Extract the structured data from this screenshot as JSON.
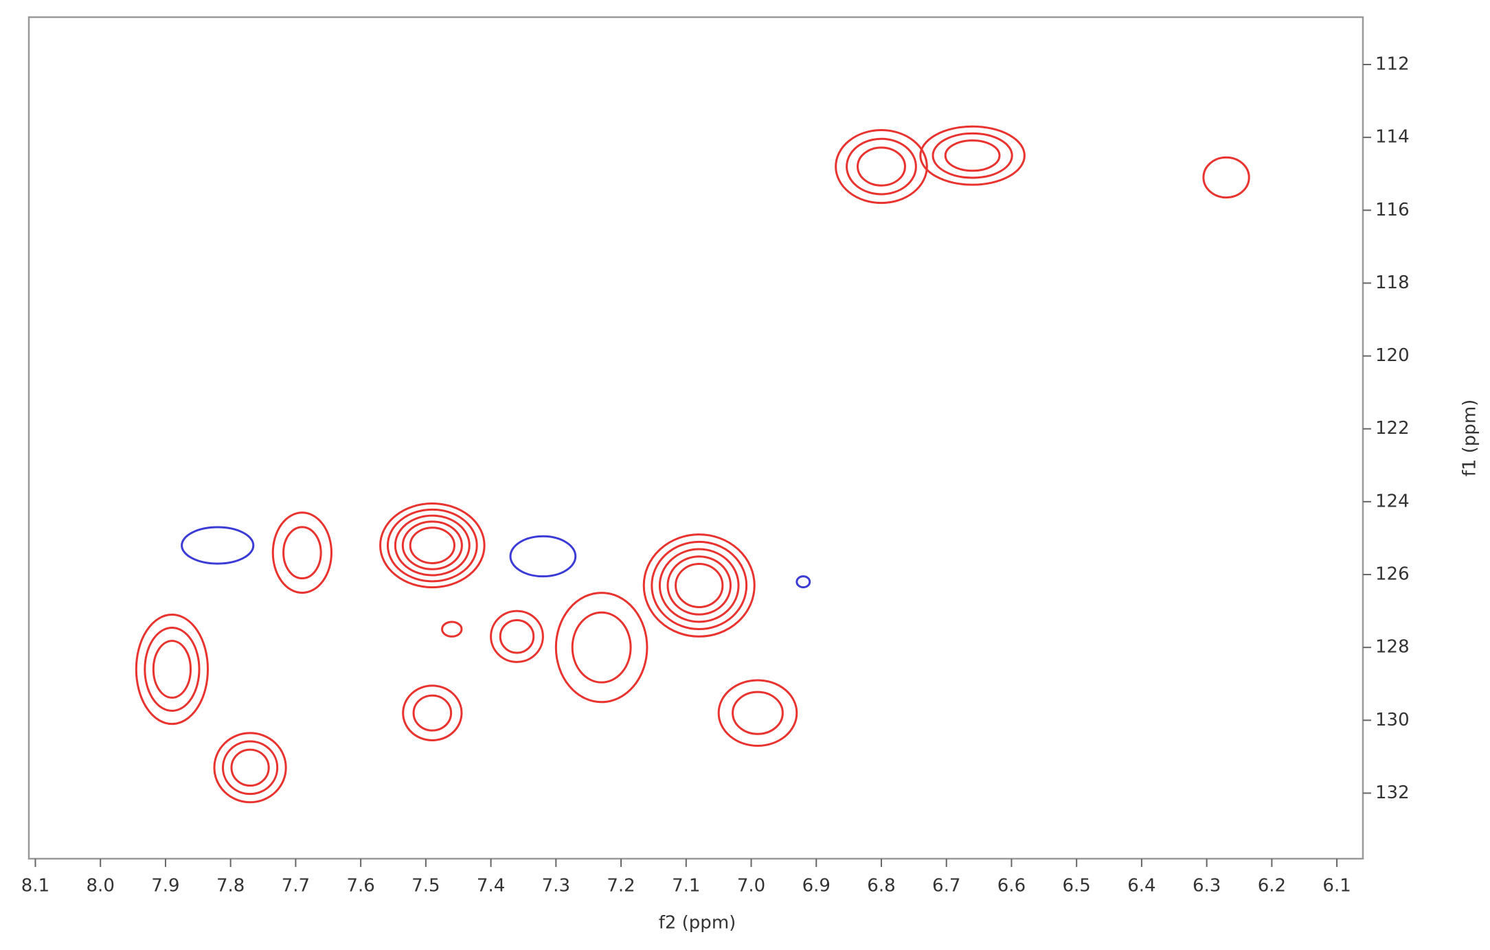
{
  "chart_data": {
    "type": "contour",
    "x_label": "f2 (ppm)",
    "y_label": "f1 (ppm)",
    "xlim": [
      8.11,
      6.06
    ],
    "ylim": [
      133.8,
      110.7
    ],
    "xticks": [
      8.1,
      {
        "value": 8,
        "label": "8.0"
      },
      7.9,
      7.8,
      7.7,
      7.6,
      7.5,
      7.4,
      7.3,
      7.2,
      7.1,
      {
        "value": 7,
        "label": "7.0"
      },
      6.9,
      6.8,
      6.7,
      6.6,
      6.5,
      6.4,
      6.3,
      6.2,
      6.1
    ],
    "yticks": [
      112,
      114,
      116,
      118,
      120,
      122,
      124,
      126,
      128,
      130,
      132
    ],
    "series": [
      {
        "color": "#e8332f",
        "x": [
          6.8,
          6.66,
          6.27,
          7.49,
          7.69,
          7.08,
          7.89,
          7.77,
          7.46,
          7.36,
          7.23,
          7.49,
          6.99
        ],
        "values": [
          114.8,
          114.5,
          115.1,
          125.2,
          125.4,
          126.3,
          128.6,
          131.3,
          127.5,
          127.7,
          128.0,
          129.8,
          129.8
        ],
        "widths": [
          0.14,
          0.16,
          0.07,
          0.16,
          0.09,
          0.17,
          0.11,
          0.11,
          0.03,
          0.08,
          0.14,
          0.09,
          0.12
        ],
        "heights": [
          2.0,
          1.6,
          1.1,
          2.3,
          2.2,
          2.8,
          3.0,
          1.9,
          0.4,
          1.4,
          3.0,
          1.5,
          1.8
        ],
        "levels": [
          3,
          3,
          1,
          5,
          2,
          5,
          3,
          3,
          1,
          2,
          2,
          2,
          2
        ]
      },
      {
        "color": "#3b3bd6",
        "x": [
          7.82,
          7.32,
          6.92
        ],
        "values": [
          125.2,
          125.5,
          126.2
        ],
        "widths": [
          0.11,
          0.1,
          0.02
        ],
        "heights": [
          1.0,
          1.1,
          0.3
        ],
        "levels": [
          1,
          1,
          1
        ]
      }
    ]
  }
}
